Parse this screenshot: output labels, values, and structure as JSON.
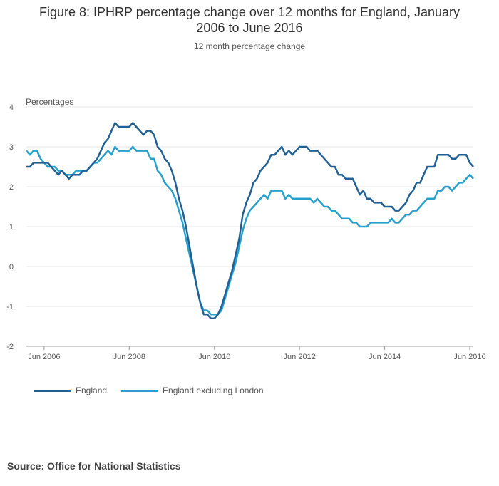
{
  "source": "Source: Office for National Statistics",
  "chart_data": {
    "type": "line",
    "title_line1": "Figure 8: IPHRP percentage change over 12 months for England, January",
    "title_line2": "2006 to June 2016",
    "subtitle": "12 month percentage change",
    "ylabel": "Percentages",
    "ylim": [
      -2,
      4
    ],
    "yticks": [
      4,
      3,
      2,
      1,
      0,
      -1,
      -2
    ],
    "ytick_labels": [
      "4",
      "3",
      "2",
      "1",
      "0",
      "-1",
      "-2"
    ],
    "xstart": "Jan 2006",
    "xend": "Jun 2016",
    "xticks": [
      {
        "label": "Jun 2006",
        "index": 5
      },
      {
        "label": "Jun 2008",
        "index": 29
      },
      {
        "label": "Jun 2010",
        "index": 53
      },
      {
        "label": "Jun 2012",
        "index": 77
      },
      {
        "label": "Jun 2014",
        "index": 101
      },
      {
        "label": "Jun 2016",
        "index": 125
      }
    ],
    "grid": true,
    "legend_position": "bottom-left",
    "series": [
      {
        "name": "England",
        "color": "#206095",
        "values": [
          2.5,
          2.5,
          2.6,
          2.6,
          2.6,
          2.6,
          2.6,
          2.5,
          2.4,
          2.3,
          2.4,
          2.3,
          2.2,
          2.3,
          2.3,
          2.3,
          2.4,
          2.4,
          2.5,
          2.6,
          2.7,
          2.9,
          3.1,
          3.2,
          3.4,
          3.6,
          3.5,
          3.5,
          3.5,
          3.5,
          3.6,
          3.5,
          3.4,
          3.3,
          3.4,
          3.4,
          3.3,
          3.0,
          2.9,
          2.7,
          2.6,
          2.4,
          2.1,
          1.7,
          1.4,
          1.0,
          0.5,
          0.0,
          -0.5,
          -0.9,
          -1.2,
          -1.2,
          -1.3,
          -1.3,
          -1.2,
          -1.0,
          -0.7,
          -0.4,
          -0.1,
          0.3,
          0.7,
          1.3,
          1.6,
          1.8,
          2.1,
          2.2,
          2.4,
          2.5,
          2.6,
          2.8,
          2.8,
          2.9,
          3.0,
          2.8,
          2.9,
          2.8,
          2.9,
          3.0,
          3.0,
          3.0,
          2.9,
          2.9,
          2.9,
          2.8,
          2.7,
          2.6,
          2.5,
          2.5,
          2.3,
          2.3,
          2.2,
          2.2,
          2.2,
          2.0,
          1.8,
          1.9,
          1.7,
          1.7,
          1.6,
          1.6,
          1.6,
          1.5,
          1.5,
          1.5,
          1.4,
          1.4,
          1.5,
          1.6,
          1.8,
          1.9,
          2.1,
          2.1,
          2.3,
          2.5,
          2.5,
          2.5,
          2.8,
          2.8,
          2.8,
          2.8,
          2.7,
          2.7,
          2.8,
          2.8,
          2.8,
          2.6,
          2.5
        ]
      },
      {
        "name": "England excluding London",
        "color": "#27a0cc",
        "values": [
          2.9,
          2.8,
          2.9,
          2.9,
          2.7,
          2.6,
          2.5,
          2.5,
          2.5,
          2.4,
          2.4,
          2.3,
          2.3,
          2.3,
          2.4,
          2.4,
          2.4,
          2.4,
          2.5,
          2.6,
          2.6,
          2.7,
          2.8,
          2.9,
          2.8,
          3.0,
          2.9,
          2.9,
          2.9,
          2.9,
          3.0,
          2.9,
          2.9,
          2.9,
          2.9,
          2.7,
          2.7,
          2.4,
          2.3,
          2.1,
          2.0,
          1.9,
          1.7,
          1.4,
          1.1,
          0.7,
          0.3,
          -0.1,
          -0.5,
          -0.9,
          -1.1,
          -1.1,
          -1.2,
          -1.2,
          -1.2,
          -1.1,
          -0.8,
          -0.5,
          -0.2,
          0.1,
          0.5,
          0.9,
          1.2,
          1.4,
          1.5,
          1.6,
          1.7,
          1.8,
          1.7,
          1.9,
          1.9,
          1.9,
          1.9,
          1.7,
          1.8,
          1.7,
          1.7,
          1.7,
          1.7,
          1.7,
          1.7,
          1.6,
          1.7,
          1.6,
          1.5,
          1.5,
          1.4,
          1.4,
          1.3,
          1.2,
          1.2,
          1.2,
          1.1,
          1.1,
          1.0,
          1.0,
          1.0,
          1.1,
          1.1,
          1.1,
          1.1,
          1.1,
          1.1,
          1.2,
          1.1,
          1.1,
          1.2,
          1.3,
          1.3,
          1.4,
          1.4,
          1.5,
          1.6,
          1.7,
          1.7,
          1.7,
          1.9,
          1.9,
          2.0,
          2.0,
          1.9,
          2.0,
          2.1,
          2.1,
          2.2,
          2.3,
          2.2
        ]
      }
    ]
  }
}
